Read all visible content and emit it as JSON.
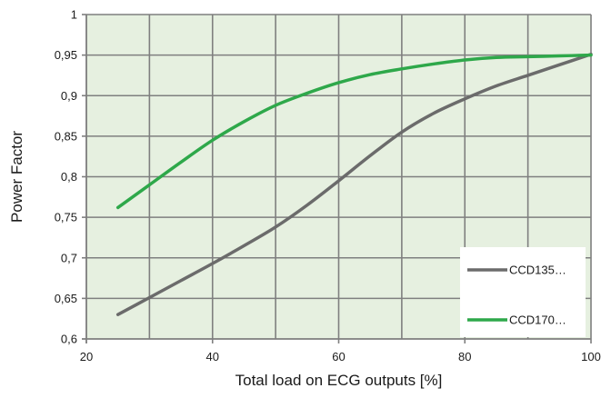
{
  "chart_data": {
    "type": "line",
    "title": "",
    "xlabel": "Total load on ECG outputs [%]",
    "ylabel": "Power Factor",
    "xlim": [
      20,
      100
    ],
    "ylim": [
      0.6,
      1
    ],
    "x_ticks": [
      20,
      40,
      60,
      80,
      100
    ],
    "x_tick_labels": [
      "20",
      "40",
      "60",
      "80",
      "100"
    ],
    "x_minor_step": 10,
    "y_ticks": [
      0.6,
      0.65,
      0.7,
      0.75,
      0.8,
      0.85,
      0.9,
      0.95,
      1
    ],
    "y_tick_labels": [
      "0,6",
      "0,65",
      "0,7",
      "0,75",
      "0,8",
      "0,85",
      "0,9",
      "0,95",
      "1"
    ],
    "grid": true,
    "legend_position": "bottom-right",
    "colors": {
      "plot_background": "#e6f0e0",
      "grid": "#7f7f7f",
      "axis": "#7f7f7f"
    },
    "series": [
      {
        "name": "CCD135…",
        "color": "#6b6b6b",
        "points": [
          [
            25,
            0.63
          ],
          [
            30,
            0.651
          ],
          [
            35,
            0.672
          ],
          [
            40,
            0.693
          ],
          [
            45,
            0.715
          ],
          [
            50,
            0.738
          ],
          [
            55,
            0.765
          ],
          [
            60,
            0.795
          ],
          [
            65,
            0.826
          ],
          [
            70,
            0.855
          ],
          [
            75,
            0.878
          ],
          [
            80,
            0.896
          ],
          [
            85,
            0.912
          ],
          [
            90,
            0.925
          ],
          [
            95,
            0.938
          ],
          [
            100,
            0.951
          ]
        ]
      },
      {
        "name": "CCD170…",
        "color": "#2ea84a",
        "points": [
          [
            25,
            0.762
          ],
          [
            30,
            0.79
          ],
          [
            35,
            0.818
          ],
          [
            40,
            0.845
          ],
          [
            45,
            0.868
          ],
          [
            50,
            0.888
          ],
          [
            55,
            0.903
          ],
          [
            60,
            0.916
          ],
          [
            65,
            0.926
          ],
          [
            70,
            0.933
          ],
          [
            75,
            0.939
          ],
          [
            80,
            0.944
          ],
          [
            85,
            0.947
          ],
          [
            90,
            0.948
          ],
          [
            95,
            0.949
          ],
          [
            100,
            0.95
          ]
        ]
      }
    ]
  }
}
